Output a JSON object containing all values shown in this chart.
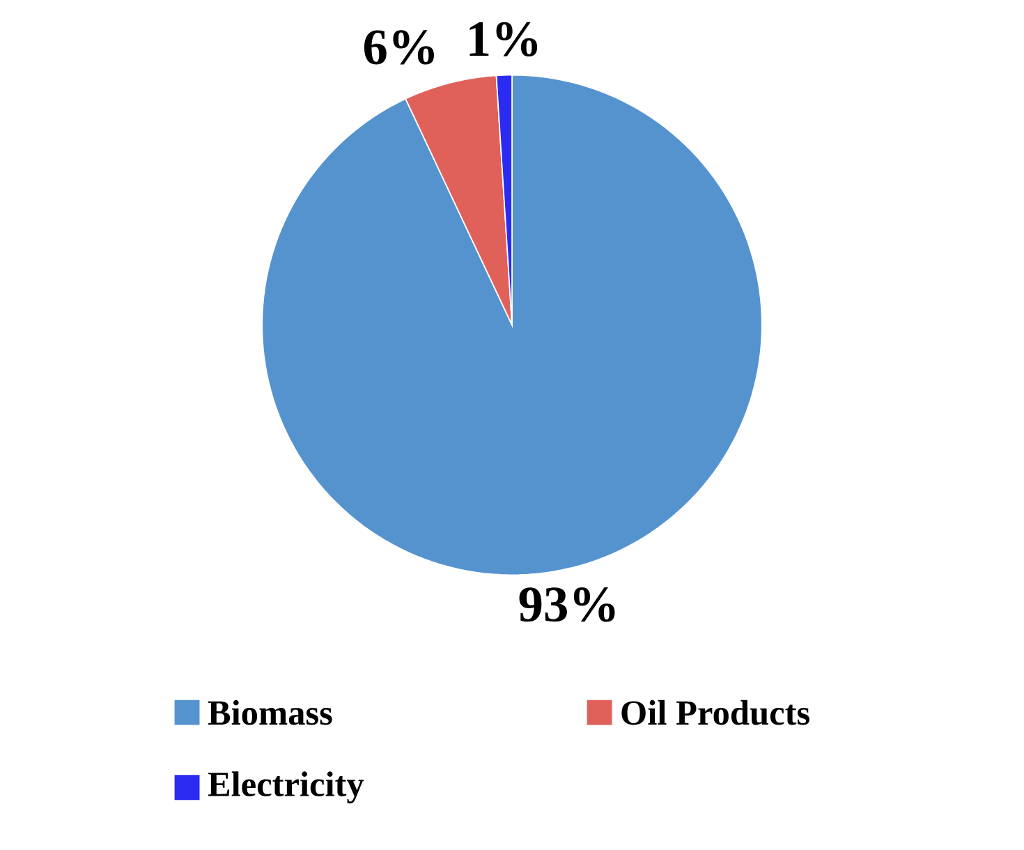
{
  "chart_data": {
    "type": "pie",
    "categories": [
      "Biomass",
      "Oil Products",
      "Electricity"
    ],
    "values": [
      93,
      6,
      1
    ],
    "colors": [
      "#5593cf",
      "#e0605a",
      "#2b2bf2"
    ],
    "value_labels": [
      "93%",
      "6%",
      "1%"
    ],
    "legend": "bottom"
  }
}
